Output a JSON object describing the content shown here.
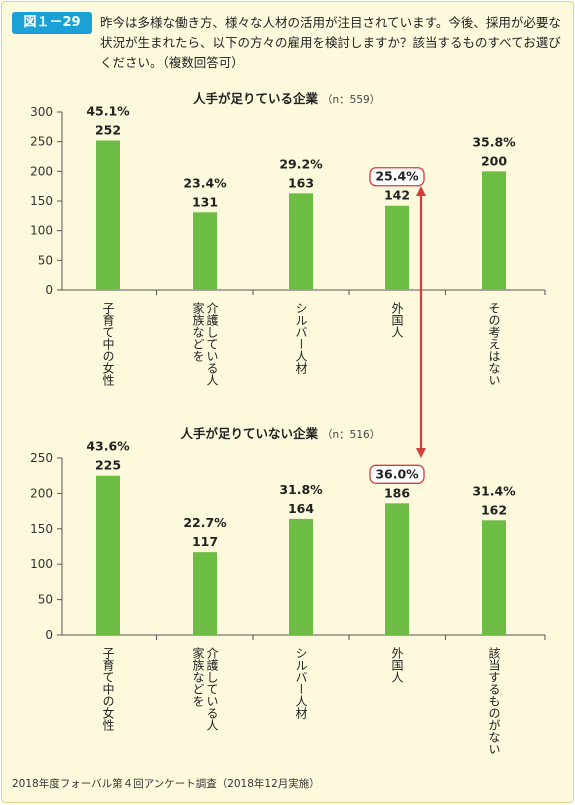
{
  "figure": {
    "label": "図１－29",
    "question": "昨今は多様な働き方、様々な人材の活用が注目されています。今後、採用が必要な状況が生まれたら、以下の方々の雇用を検討しますか？該当するものすべてお選びください。（複数回答可）",
    "source": "2018年度フォーバル第４回アンケート調査（2018年12月実施）"
  },
  "colors": {
    "bar": "#6dbd45",
    "highlight": "#d93a3a",
    "label_box": "#1aa2d6"
  },
  "chart_data": [
    {
      "type": "bar",
      "title": "人手が足りている企業",
      "n_label": "（n：559）",
      "categories": [
        "子育て中の女性",
        "家族などを介護している人",
        "シルバー人材",
        "外国人",
        "その考えはない"
      ],
      "category_lines": [
        [
          "子育て中の女性"
        ],
        [
          "家族などを",
          "介護している人"
        ],
        [
          "シルバー人材"
        ],
        [
          "外国人"
        ],
        [
          "その考えはない"
        ]
      ],
      "values": [
        252,
        131,
        163,
        142,
        200
      ],
      "percents": [
        "45.1%",
        "23.4%",
        "29.2%",
        "25.4%",
        "35.8%"
      ],
      "highlight_index": 3,
      "ylim": [
        0,
        300
      ],
      "yticks": [
        0,
        50,
        100,
        150,
        200,
        250,
        300
      ]
    },
    {
      "type": "bar",
      "title": "人手が足りていない企業",
      "n_label": "（n：516）",
      "categories": [
        "子育て中の女性",
        "家族などを介護している人",
        "シルバー人材",
        "外国人",
        "該当するものがない"
      ],
      "category_lines": [
        [
          "子育て中の女性"
        ],
        [
          "家族などを",
          "介護している人"
        ],
        [
          "シルバー人材"
        ],
        [
          "外国人"
        ],
        [
          "該当するものがない"
        ]
      ],
      "values": [
        225,
        117,
        164,
        186,
        162
      ],
      "percents": [
        "43.6%",
        "22.7%",
        "31.8%",
        "36.0%",
        "31.4%"
      ],
      "highlight_index": 3,
      "ylim": [
        0,
        250
      ],
      "yticks": [
        0,
        50,
        100,
        150,
        200,
        250
      ]
    }
  ]
}
